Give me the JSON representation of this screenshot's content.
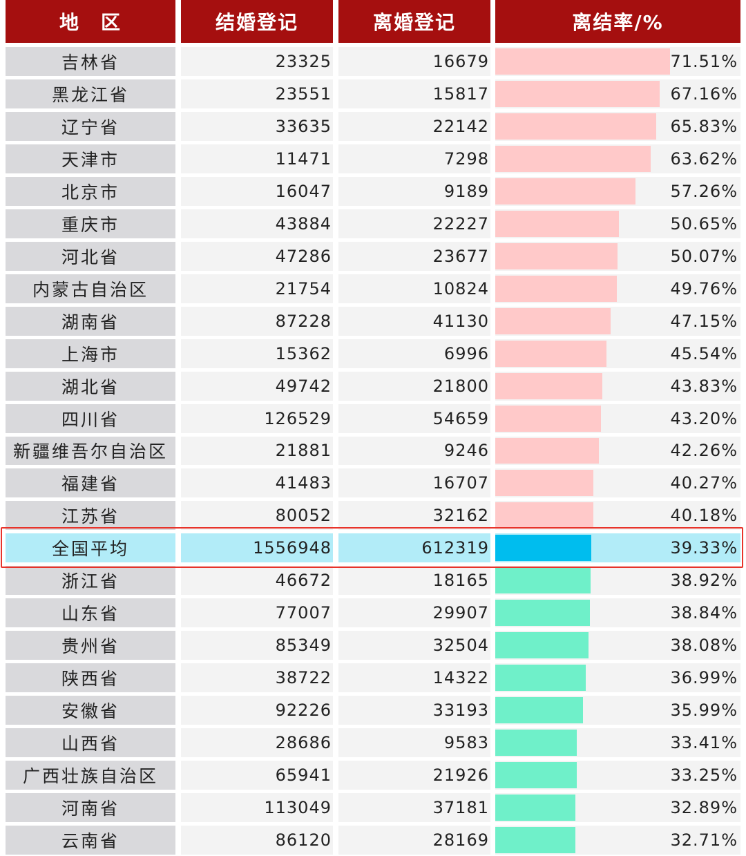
{
  "header": [
    "地　区",
    "结婚登记",
    "离婚登记",
    "离结率/%"
  ],
  "rows_above": [
    {
      "region": "吉林省",
      "marriages": 23325,
      "divorces": 16679,
      "rate": {
        "value": 71.51,
        "label": "71.51%"
      }
    },
    {
      "region": "黑龙江省",
      "marriages": 23551,
      "divorces": 15817,
      "rate": {
        "value": 67.16,
        "label": "67.16%"
      }
    },
    {
      "region": "辽宁省",
      "marriages": 33635,
      "divorces": 22142,
      "rate": {
        "value": 65.83,
        "label": "65.83%"
      }
    },
    {
      "region": "天津市",
      "marriages": 11471,
      "divorces": 7298,
      "rate": {
        "value": 63.62,
        "label": "63.62%"
      }
    },
    {
      "region": "北京市",
      "marriages": 16047,
      "divorces": 9189,
      "rate": {
        "value": 57.26,
        "label": "57.26%"
      }
    },
    {
      "region": "重庆市",
      "marriages": 43884,
      "divorces": 22227,
      "rate": {
        "value": 50.65,
        "label": "50.65%"
      }
    },
    {
      "region": "河北省",
      "marriages": 47286,
      "divorces": 23677,
      "rate": {
        "value": 50.07,
        "label": "50.07%"
      }
    },
    {
      "region": "内蒙古自治区",
      "marriages": 21754,
      "divorces": 10824,
      "rate": {
        "value": 49.76,
        "label": "49.76%"
      }
    },
    {
      "region": "湖南省",
      "marriages": 87228,
      "divorces": 41130,
      "rate": {
        "value": 47.15,
        "label": "47.15%"
      }
    },
    {
      "region": "上海市",
      "marriages": 15362,
      "divorces": 6996,
      "rate": {
        "value": 45.54,
        "label": "45.54%"
      }
    },
    {
      "region": "湖北省",
      "marriages": 49742,
      "divorces": 21800,
      "rate": {
        "value": 43.83,
        "label": "43.83%"
      }
    },
    {
      "region": "四川省",
      "marriages": 126529,
      "divorces": 54659,
      "rate": {
        "value": 43.2,
        "label": "43.20%"
      }
    },
    {
      "region": "新疆维吾尔自治区",
      "marriages": 21881,
      "divorces": 9246,
      "rate": {
        "value": 42.26,
        "label": "42.26%"
      }
    },
    {
      "region": "福建省",
      "marriages": 41483,
      "divorces": 16707,
      "rate": {
        "value": 40.27,
        "label": "40.27%"
      }
    },
    {
      "region": "江苏省",
      "marriages": 80052,
      "divorces": 32162,
      "rate": {
        "value": 40.18,
        "label": "40.18%"
      }
    }
  ],
  "average": {
    "region": "全国平均",
    "marriages": 1556948,
    "divorces": 612319,
    "rate": {
      "value": 39.33,
      "label": "39.33%"
    }
  },
  "rows_below": [
    {
      "region": "浙江省",
      "marriages": 46672,
      "divorces": 18165,
      "rate": {
        "value": 38.92,
        "label": "38.92%"
      }
    },
    {
      "region": "山东省",
      "marriages": 77007,
      "divorces": 29907,
      "rate": {
        "value": 38.84,
        "label": "38.84%"
      }
    },
    {
      "region": "贵州省",
      "marriages": 85349,
      "divorces": 32504,
      "rate": {
        "value": 38.08,
        "label": "38.08%"
      }
    },
    {
      "region": "陕西省",
      "marriages": 38722,
      "divorces": 14322,
      "rate": {
        "value": 36.99,
        "label": "36.99%"
      }
    },
    {
      "region": "安徽省",
      "marriages": 92226,
      "divorces": 33193,
      "rate": {
        "value": 35.99,
        "label": "35.99%"
      }
    },
    {
      "region": "山西省",
      "marriages": 28686,
      "divorces": 9583,
      "rate": {
        "value": 33.41,
        "label": "33.41%"
      }
    },
    {
      "region": "广西壮族自治区",
      "marriages": 65941,
      "divorces": 21926,
      "rate": {
        "value": 33.25,
        "label": "33.25%"
      }
    },
    {
      "region": "河南省",
      "marriages": 113049,
      "divorces": 37181,
      "rate": {
        "value": 32.89,
        "label": "32.89%"
      }
    },
    {
      "region": "云南省",
      "marriages": 86120,
      "divorces": 28169,
      "rate": {
        "value": 32.71,
        "label": "32.71%"
      }
    }
  ]
}
